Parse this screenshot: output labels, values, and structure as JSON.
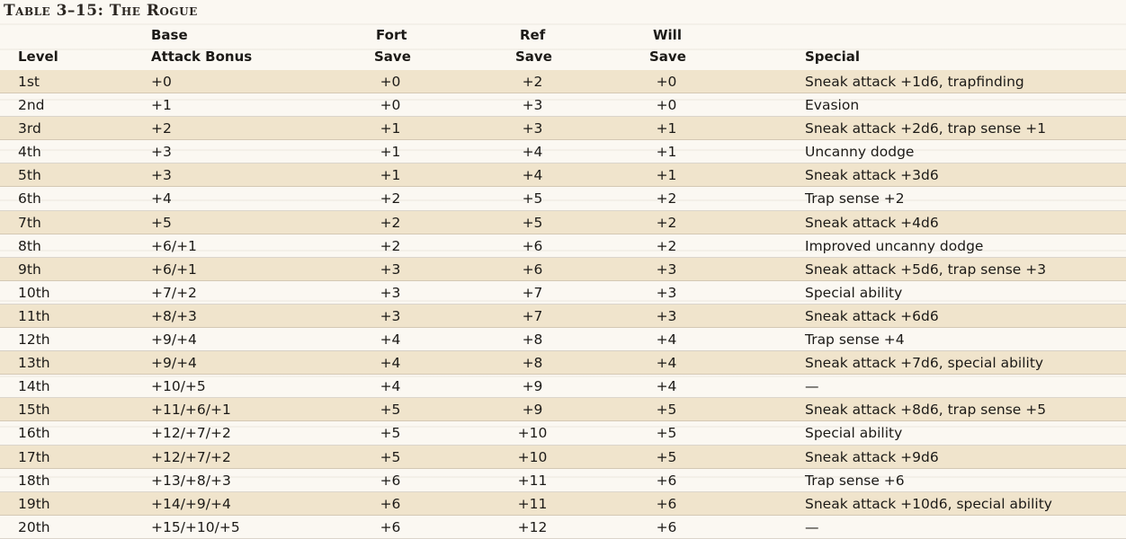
{
  "title": "Table 3–15: The Rogue",
  "headers": {
    "level": [
      "",
      "Level"
    ],
    "bab": [
      "Base",
      "Attack Bonus"
    ],
    "fort": [
      "Fort",
      "Save"
    ],
    "ref": [
      "Ref",
      "Save"
    ],
    "will": [
      "Will",
      "Save"
    ],
    "special": [
      "",
      "Special"
    ]
  },
  "rows": [
    {
      "level": "1st",
      "bab": "+0",
      "fort": "+0",
      "ref": "+2",
      "will": "+0",
      "special": "Sneak attack +1d6, trapfinding"
    },
    {
      "level": "2nd",
      "bab": "+1",
      "fort": "+0",
      "ref": "+3",
      "will": "+0",
      "special": "Evasion"
    },
    {
      "level": "3rd",
      "bab": "+2",
      "fort": "+1",
      "ref": "+3",
      "will": "+1",
      "special": "Sneak attack +2d6, trap sense +1"
    },
    {
      "level": "4th",
      "bab": "+3",
      "fort": "+1",
      "ref": "+4",
      "will": "+1",
      "special": "Uncanny dodge"
    },
    {
      "level": "5th",
      "bab": "+3",
      "fort": "+1",
      "ref": "+4",
      "will": "+1",
      "special": "Sneak attack +3d6"
    },
    {
      "level": "6th",
      "bab": "+4",
      "fort": "+2",
      "ref": "+5",
      "will": "+2",
      "special": "Trap sense +2"
    },
    {
      "level": "7th",
      "bab": "+5",
      "fort": "+2",
      "ref": "+5",
      "will": "+2",
      "special": "Sneak attack +4d6"
    },
    {
      "level": "8th",
      "bab": "+6/+1",
      "fort": "+2",
      "ref": "+6",
      "will": "+2",
      "special": "Improved uncanny dodge"
    },
    {
      "level": "9th",
      "bab": "+6/+1",
      "fort": "+3",
      "ref": "+6",
      "will": "+3",
      "special": "Sneak attack +5d6, trap sense +3"
    },
    {
      "level": "10th",
      "bab": "+7/+2",
      "fort": "+3",
      "ref": "+7",
      "will": "+3",
      "special": "Special ability"
    },
    {
      "level": "11th",
      "bab": "+8/+3",
      "fort": "+3",
      "ref": "+7",
      "will": "+3",
      "special": "Sneak attack +6d6"
    },
    {
      "level": "12th",
      "bab": "+9/+4",
      "fort": "+4",
      "ref": "+8",
      "will": "+4",
      "special": "Trap sense +4"
    },
    {
      "level": "13th",
      "bab": "+9/+4",
      "fort": "+4",
      "ref": "+8",
      "will": "+4",
      "special": "Sneak attack +7d6, special ability"
    },
    {
      "level": "14th",
      "bab": "+10/+5",
      "fort": "+4",
      "ref": "+9",
      "will": "+4",
      "special": "—"
    },
    {
      "level": "15th",
      "bab": "+11/+6/+1",
      "fort": "+5",
      "ref": "+9",
      "will": "+5",
      "special": "Sneak attack +8d6, trap sense +5"
    },
    {
      "level": "16th",
      "bab": "+12/+7/+2",
      "fort": "+5",
      "ref": "+10",
      "will": "+5",
      "special": "Special ability"
    },
    {
      "level": "17th",
      "bab": "+12/+7/+2",
      "fort": "+5",
      "ref": "+10",
      "will": "+5",
      "special": "Sneak attack +9d6"
    },
    {
      "level": "18th",
      "bab": "+13/+8/+3",
      "fort": "+6",
      "ref": "+11",
      "will": "+6",
      "special": "Trap sense +6"
    },
    {
      "level": "19th",
      "bab": "+14/+9/+4",
      "fort": "+6",
      "ref": "+11",
      "will": "+6",
      "special": "Sneak attack +10d6, special ability"
    },
    {
      "level": "20th",
      "bab": "+15/+10/+5",
      "fort": "+6",
      "ref": "+12",
      "will": "+6",
      "special": "—"
    }
  ],
  "colors": {
    "shade": "#f0e4cc",
    "paper": "#fbf8f2"
  }
}
